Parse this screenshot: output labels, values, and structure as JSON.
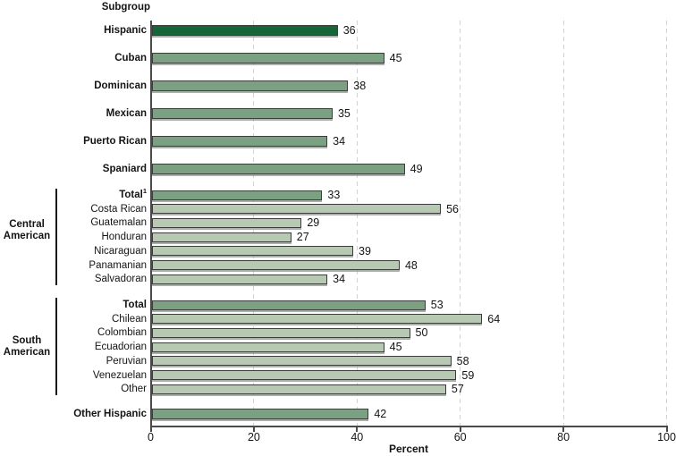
{
  "header": "Subgroup",
  "axis": {
    "label": "Percent",
    "ticks": [
      "0",
      "20",
      "40",
      "60",
      "80",
      "100"
    ]
  },
  "colors": {
    "dark": "#166539",
    "medium": "#7ca182",
    "light": "#b7c9b2"
  },
  "chart_data": {
    "type": "bar",
    "orientation": "horizontal",
    "title": "Subgroup",
    "xlabel": "Percent",
    "xlim": [
      0,
      100
    ],
    "xticks": [
      0,
      20,
      40,
      60,
      80,
      100
    ],
    "grid": "vertical-dashed",
    "groups": [
      {
        "label": "",
        "rows": [
          {
            "label": "Hispanic",
            "value": 36,
            "shade": "dark",
            "bold": true
          },
          {
            "label": "Cuban",
            "value": 45,
            "shade": "medium",
            "bold": true
          },
          {
            "label": "Dominican",
            "value": 38,
            "shade": "medium",
            "bold": true
          },
          {
            "label": "Mexican",
            "value": 35,
            "shade": "medium",
            "bold": true
          },
          {
            "label": "Puerto Rican",
            "value": 34,
            "shade": "medium",
            "bold": true
          },
          {
            "label": "Spaniard",
            "value": 49,
            "shade": "medium",
            "bold": true
          }
        ]
      },
      {
        "label": "Central American",
        "rows": [
          {
            "label": "Total",
            "sup": "1",
            "value": 33,
            "shade": "medium",
            "bold": true
          },
          {
            "label": "Costa Rican",
            "value": 56,
            "shade": "light",
            "bold": false
          },
          {
            "label": "Guatemalan",
            "value": 29,
            "shade": "light",
            "bold": false
          },
          {
            "label": "Honduran",
            "value": 27,
            "shade": "light",
            "bold": false
          },
          {
            "label": "Nicaraguan",
            "value": 39,
            "shade": "light",
            "bold": false
          },
          {
            "label": "Panamanian",
            "value": 48,
            "shade": "light",
            "bold": false
          },
          {
            "label": "Salvadoran",
            "value": 34,
            "shade": "light",
            "bold": false
          }
        ]
      },
      {
        "label": "South American",
        "rows": [
          {
            "label": "Total",
            "value": 53,
            "shade": "medium",
            "bold": true
          },
          {
            "label": "Chilean",
            "value": 64,
            "shade": "light",
            "bold": false
          },
          {
            "label": "Colombian",
            "value": 50,
            "shade": "light",
            "bold": false
          },
          {
            "label": "Ecuadorian",
            "value": 45,
            "shade": "light",
            "bold": false
          },
          {
            "label": "Peruvian",
            "value": 58,
            "shade": "light",
            "bold": false
          },
          {
            "label": "Venezuelan",
            "value": 59,
            "shade": "light",
            "bold": false
          },
          {
            "label": "Other",
            "value": 57,
            "shade": "light",
            "bold": false
          }
        ]
      },
      {
        "label": "",
        "rows": [
          {
            "label": "Other Hispanic",
            "value": 42,
            "shade": "medium",
            "bold": true
          }
        ]
      }
    ]
  }
}
